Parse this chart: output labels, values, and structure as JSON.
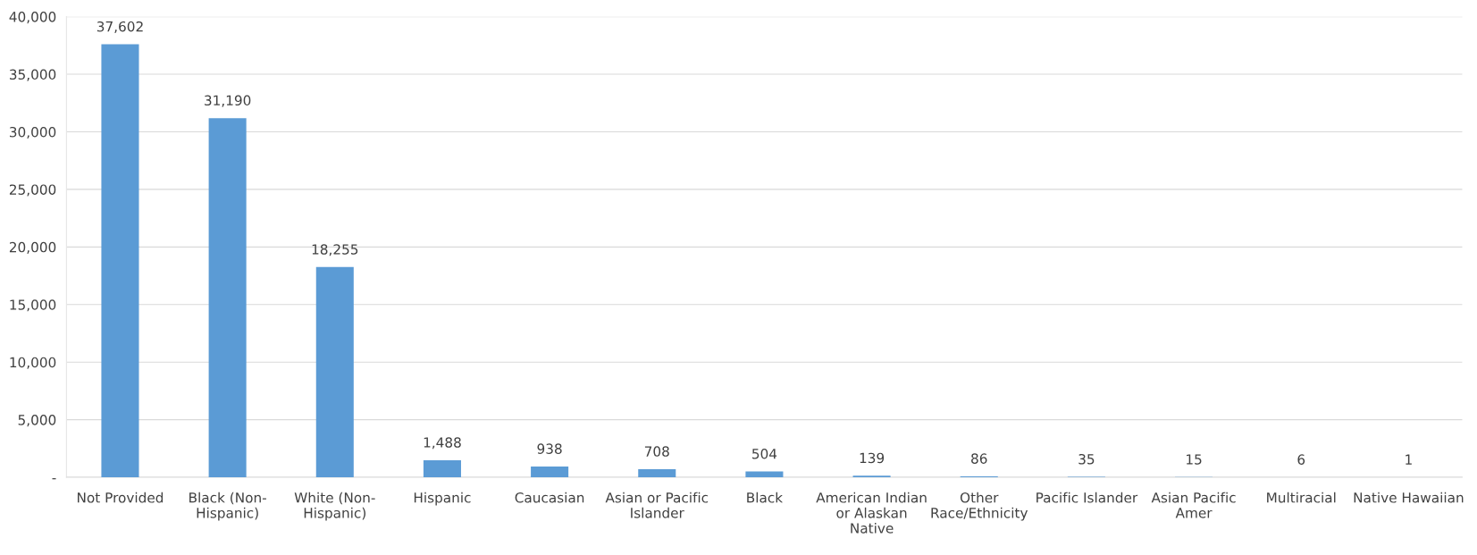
{
  "chart_data": {
    "type": "bar",
    "categories": [
      "Not Provided",
      "Black (Non-Hispanic)",
      "White (Non-Hispanic)",
      "Hispanic",
      "Caucasian",
      "Asian or Pacific Islander",
      "Black",
      "American Indian or Alaskan Native",
      "Other Race/Ethnicity",
      "Pacific Islander",
      "Asian Pacific Amer",
      "Multiracial",
      "Native Hawaiian"
    ],
    "values": [
      37602,
      31190,
      18255,
      1488,
      938,
      708,
      504,
      139,
      86,
      35,
      15,
      6,
      1
    ],
    "value_labels": [
      "37,602",
      "31,190",
      "18,255",
      "1,488",
      "938",
      "708",
      "504",
      "139",
      "86",
      "35",
      "15",
      "6",
      "1"
    ],
    "color": "#5b9bd5",
    "ylim": [
      0,
      40000
    ],
    "yticks": [
      {
        "value": 0,
        "label": "-"
      },
      {
        "value": 5000,
        "label": "5,000"
      },
      {
        "value": 10000,
        "label": "10,000"
      },
      {
        "value": 15000,
        "label": "15,000"
      },
      {
        "value": 20000,
        "label": "20,000"
      },
      {
        "value": 25000,
        "label": "25,000"
      },
      {
        "value": 30000,
        "label": "30,000"
      },
      {
        "value": 35000,
        "label": "35,000"
      },
      {
        "value": 40000,
        "label": "40,000"
      }
    ],
    "grid": "y"
  }
}
